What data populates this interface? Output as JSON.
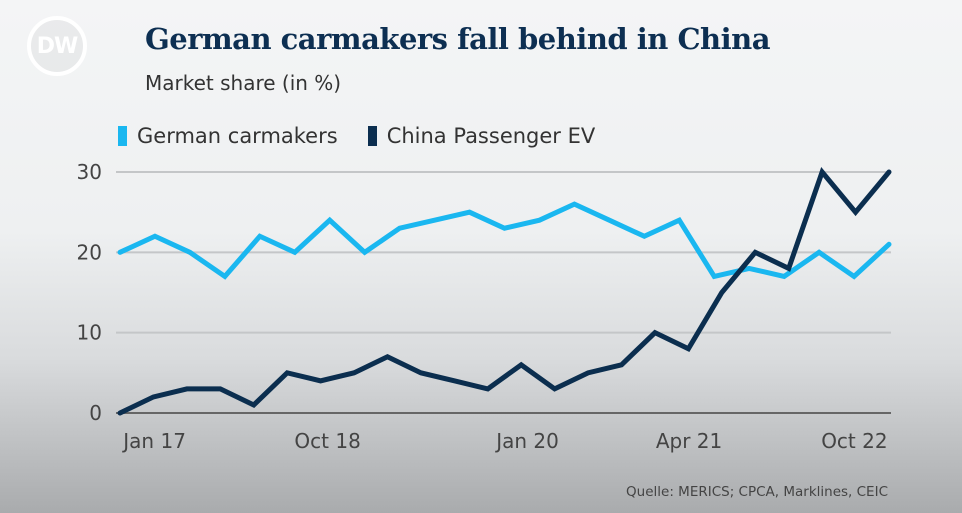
{
  "logo": {
    "text": "DW"
  },
  "chart_data": {
    "type": "line",
    "title": "German carmakers fall behind in China",
    "subtitle": "Market share (in %)",
    "xlabel": "",
    "ylabel": "Market share (in %)",
    "ylim": [
      0,
      30
    ],
    "y_ticks": [
      "0",
      "10",
      "20",
      "30"
    ],
    "y_tick_values": [
      0,
      10,
      20,
      30
    ],
    "grid": true,
    "legend_placement": "top-left",
    "x_ticks": [
      {
        "label": "Jan 17",
        "at": 0.045
      },
      {
        "label": "Oct 18",
        "at": 0.27
      },
      {
        "label": "Jan 20",
        "at": 0.53
      },
      {
        "label": "Apr 21",
        "at": 0.74
      },
      {
        "label": "Oct 22",
        "at": 0.955
      }
    ],
    "series": [
      {
        "name": "German carmakers",
        "color": "#1ab7f0",
        "values": [
          20,
          22,
          20,
          17,
          22,
          20,
          24,
          20,
          23,
          24,
          25,
          23,
          24,
          26,
          24,
          22,
          24,
          17,
          18,
          17,
          20,
          17,
          21
        ]
      },
      {
        "name": "China Passenger EV",
        "color": "#0b2e4f",
        "values": [
          0,
          2,
          3,
          3,
          1,
          5,
          4,
          5,
          7,
          5,
          4,
          3,
          6,
          3,
          5,
          6,
          10,
          8,
          15,
          20,
          18,
          30,
          25,
          30
        ]
      }
    ],
    "source": "Quelle: MERICS; CPCA, Marklines, CEIC"
  }
}
